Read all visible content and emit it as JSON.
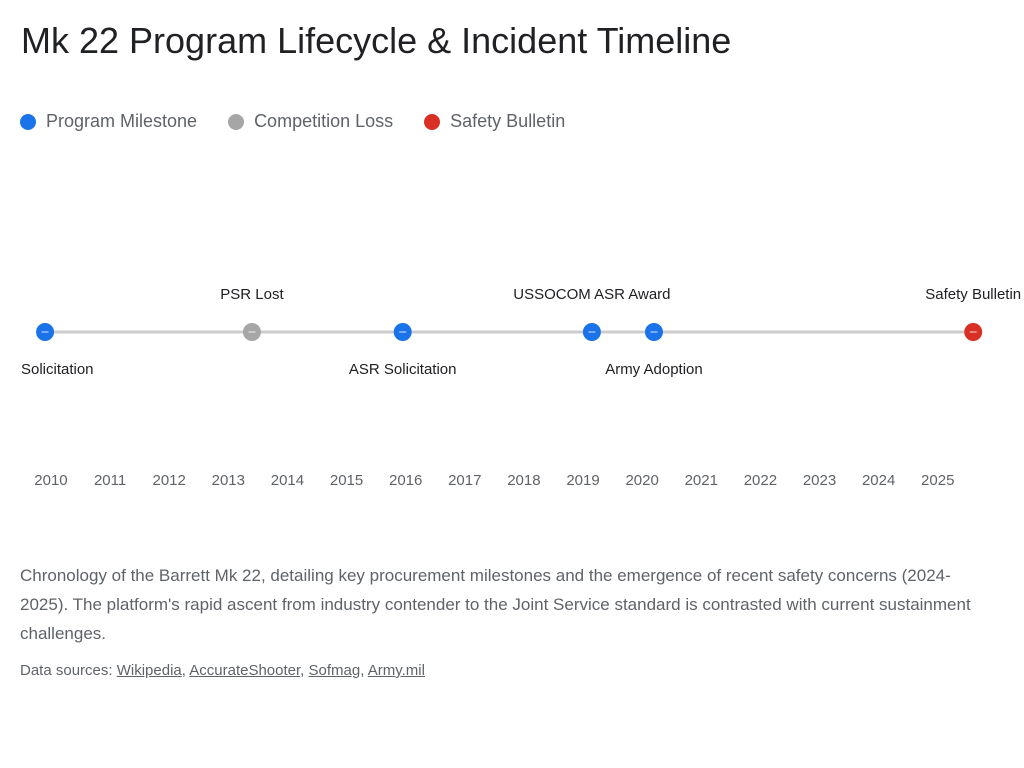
{
  "header": {
    "title": "Mk 22 Program Lifecycle & Incident Timeline"
  },
  "legend": {
    "items": [
      {
        "label": "Program Milestone",
        "color": "#1a73e8"
      },
      {
        "label": "Competition Loss",
        "color": "#a6a6a6"
      },
      {
        "label": "Safety Bulletin",
        "color": "#d93025"
      }
    ]
  },
  "chart_data": {
    "type": "timeline",
    "title": "Mk 22 Program Lifecycle & Incident Timeline",
    "x_range": [
      2009.95,
      2025.85
    ],
    "ticks": [
      "2010",
      "2011",
      "2012",
      "2013",
      "2014",
      "2015",
      "2016",
      "2017",
      "2018",
      "2019",
      "2020",
      "2021",
      "2022",
      "2023",
      "2024",
      "2025"
    ],
    "grid": false,
    "legend_position": "top-left",
    "events": [
      {
        "label": "Solicitation",
        "date": 2009.9,
        "category": "Program Milestone",
        "label_side": "below"
      },
      {
        "label": "PSR Lost",
        "date": 2013.4,
        "category": "Competition Loss",
        "label_side": "above"
      },
      {
        "label": "ASR Solicitation",
        "date": 2015.95,
        "category": "Program Milestone",
        "label_side": "below"
      },
      {
        "label": "USSOCOM ASR Award",
        "date": 2019.15,
        "category": "Program Milestone",
        "label_side": "above"
      },
      {
        "label": "Army Adoption",
        "date": 2020.2,
        "category": "Program Milestone",
        "label_side": "below"
      },
      {
        "label": "Safety Bulletin",
        "date": 2025.6,
        "category": "Safety Bulletin",
        "label_side": "above"
      }
    ],
    "colors": {
      "Program Milestone": "#1a73e8",
      "Competition Loss": "#a6a6a6",
      "Safety Bulletin": "#d93025",
      "axis_line": "#cccccc"
    }
  },
  "description": "Chronology of the Barrett Mk 22, detailing key procurement milestones and the emergence of recent safety concerns (2024-2025). The platform's rapid ascent from industry contender to the Joint Service standard is contrasted with current sustainment challenges.",
  "sources": {
    "prefix": "Data sources: ",
    "links": [
      "Wikipedia",
      "AccurateShooter",
      "Sofmag",
      "Army.mil"
    ]
  }
}
